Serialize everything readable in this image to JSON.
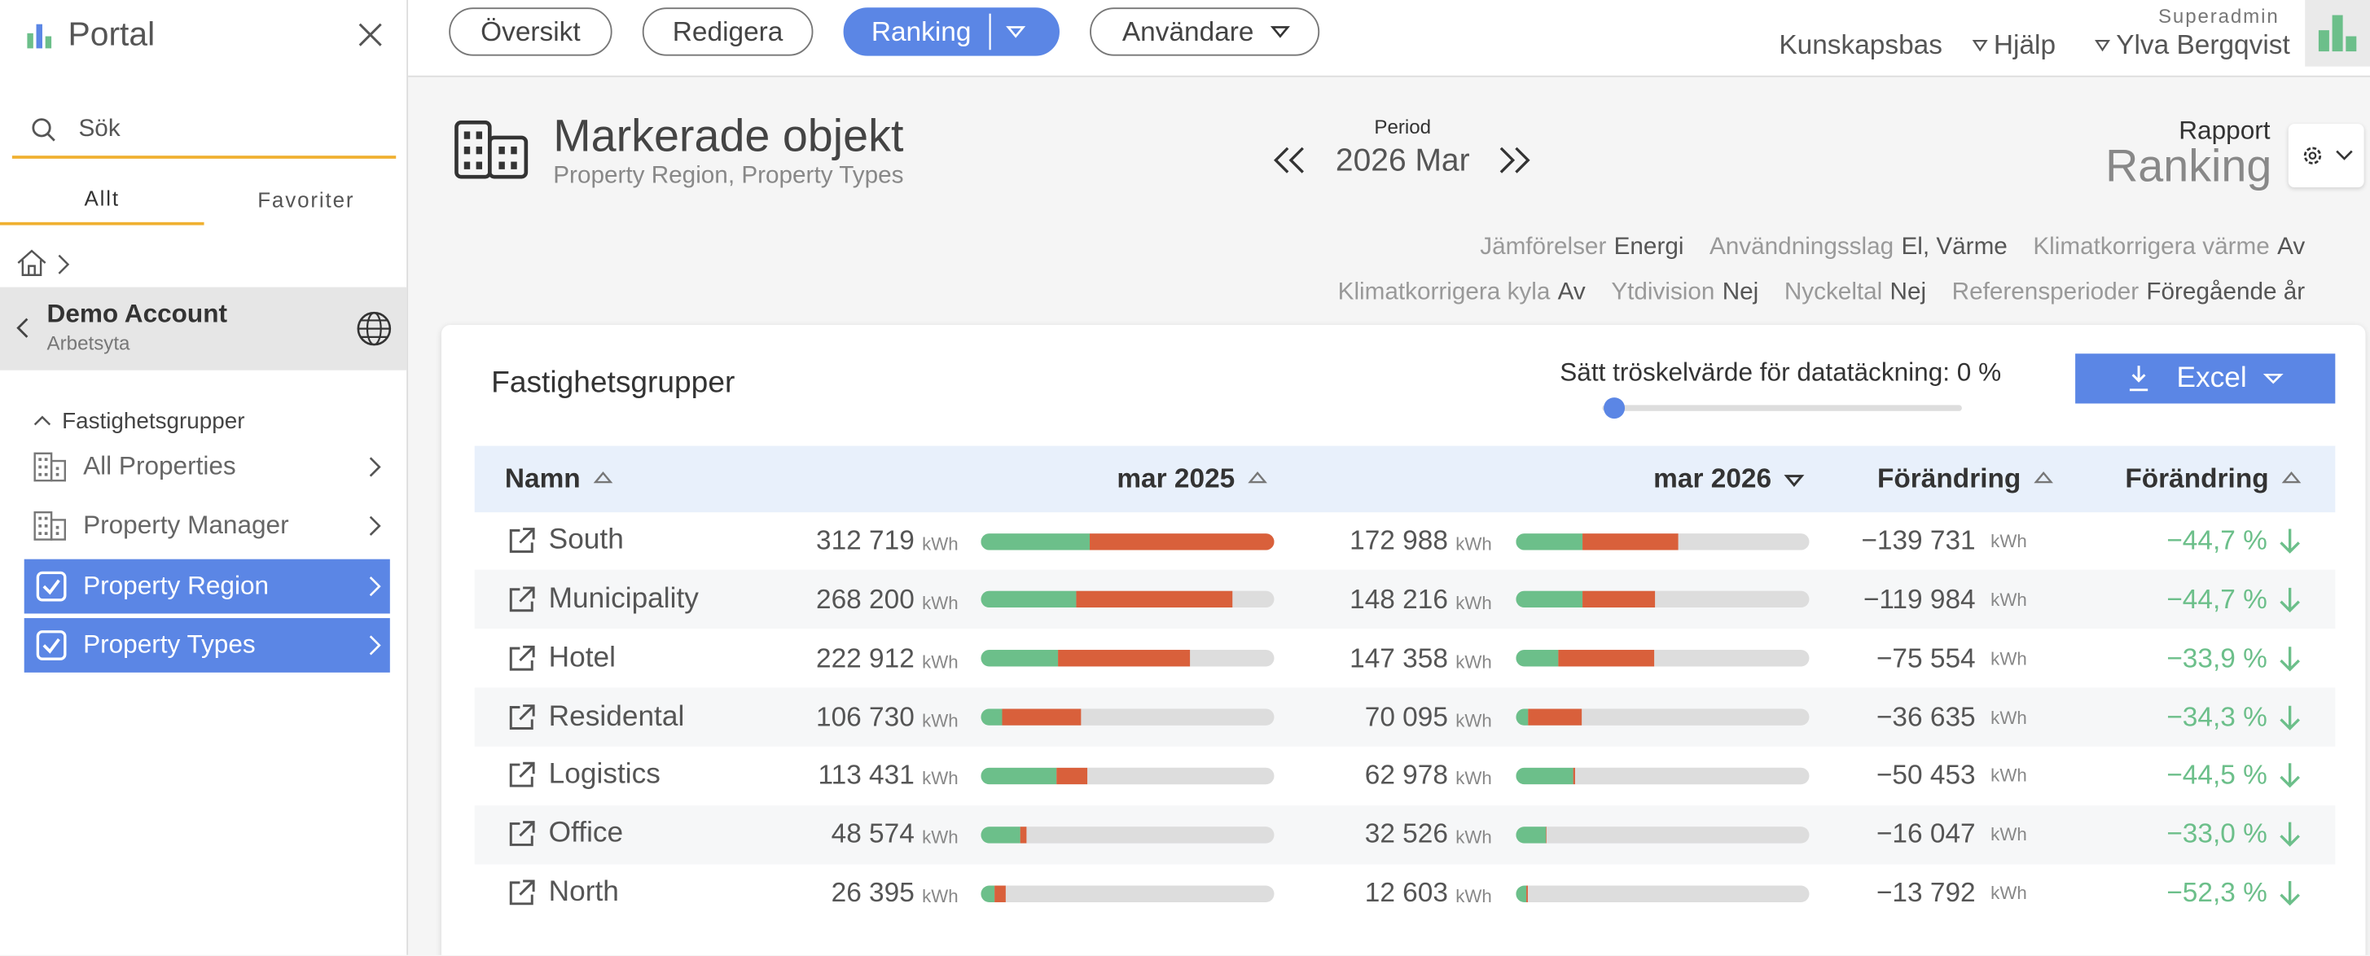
{
  "sidebar": {
    "logo": "Portal",
    "search": "Sök",
    "tabs": [
      "Allt",
      "Favoriter"
    ],
    "account": {
      "name": "Demo Account",
      "sub": "Arbetsyta"
    },
    "section": "Fastighetsgrupper",
    "items": [
      {
        "label": "All Properties",
        "checked": false
      },
      {
        "label": "Property Manager",
        "checked": false
      },
      {
        "label": "Property Region",
        "checked": true
      },
      {
        "label": "Property Types",
        "checked": true
      }
    ]
  },
  "nav": {
    "buttons": [
      "Översikt",
      "Redigera",
      "Ranking",
      "Användare"
    ],
    "active_index": 2
  },
  "user": {
    "role": "Superadmin",
    "links": [
      "Kunskapsbas",
      "Hjälp",
      "Ylva Bergqvist"
    ]
  },
  "header": {
    "title": "Markerade objekt",
    "subtitle": "Property Region, Property Types",
    "period_label": "Period",
    "period": "2026 Mar",
    "report_label": "Rapport",
    "report": "Ranking"
  },
  "settings": [
    [
      {
        "key": "Jämförelser",
        "value": "Energi"
      },
      {
        "key": "Användningsslag",
        "value": "El, Värme"
      },
      {
        "key": "Klimatkorrigera värme",
        "value": "Av"
      }
    ],
    [
      {
        "key": "Klimatkorrigera kyla",
        "value": "Av"
      },
      {
        "key": "Ytdivision",
        "value": "Nej"
      },
      {
        "key": "Nyckeltal",
        "value": "Nej"
      },
      {
        "key": "Referensperioder",
        "value": "Föregående år"
      }
    ]
  ],
  "table": {
    "title": "Fastighetsgrupper",
    "threshold": "Sätt tröskelvärde för datatäckning: 0 %",
    "excel": "Excel",
    "columns": [
      "Namn",
      "mar 2025",
      "mar 2026",
      "Förändring",
      "Förändring"
    ],
    "unit": "kWh",
    "colors": {
      "green": "#6cbf8a",
      "red": "#d9603b",
      "track": "#dddddd"
    },
    "rows": [
      {
        "name": "South",
        "prev": {
          "value": 312719,
          "label": "312 719"
        },
        "prev_split": [
          116000,
          196719
        ],
        "curr": {
          "value": 172988,
          "label": "172 988"
        },
        "curr_split": [
          70900,
          102088
        ],
        "change": {
          "value": -139731,
          "label": "−139 731"
        },
        "pct": {
          "value": -44.7,
          "label": "−44,7 %"
        }
      },
      {
        "name": "Municipality",
        "prev": {
          "value": 268200,
          "label": "268 200"
        },
        "prev_split": [
          101600,
          166600
        ],
        "curr": {
          "value": 148216,
          "label": "148 216"
        },
        "curr_split": [
          70900,
          77316
        ],
        "change": {
          "value": -119984,
          "label": "−119 984"
        },
        "pct": {
          "value": -44.7,
          "label": "−44,7 %"
        }
      },
      {
        "name": "Hotel",
        "prev": {
          "value": 222912,
          "label": "222 912"
        },
        "prev_split": [
          82200,
          140712
        ],
        "curr": {
          "value": 147358,
          "label": "147 358"
        },
        "curr_split": [
          45100,
          102258
        ],
        "change": {
          "value": -75554,
          "label": "−75 554"
        },
        "pct": {
          "value": -33.9,
          "label": "−33,9 %"
        }
      },
      {
        "name": "Residental",
        "prev": {
          "value": 106730,
          "label": "106 730"
        },
        "prev_split": [
          22600,
          84130
        ],
        "curr": {
          "value": 70095,
          "label": "70 095"
        },
        "curr_split": [
          12900,
          57195
        ],
        "change": {
          "value": -36635,
          "label": "−36 635"
        },
        "pct": {
          "value": -34.3,
          "label": "−34,3 %"
        }
      },
      {
        "name": "Logistics",
        "prev": {
          "value": 113431,
          "label": "113 431"
        },
        "prev_split": [
          80600,
          32831
        ],
        "curr": {
          "value": 62978,
          "label": "62 978"
        },
        "curr_split": [
          61000,
          1978
        ],
        "change": {
          "value": -50453,
          "label": "−50 453"
        },
        "pct": {
          "value": -44.5,
          "label": "−44,5 %"
        }
      },
      {
        "name": "Office",
        "prev": {
          "value": 48574,
          "label": "48 574"
        },
        "prev_split": [
          41900,
          6674
        ],
        "curr": {
          "value": 32526,
          "label": "32 526"
        },
        "curr_split": [
          32000,
          526
        ],
        "change": {
          "value": -16047,
          "label": "−16 047"
        },
        "pct": {
          "value": -33.0,
          "label": "−33,0 %"
        }
      },
      {
        "name": "North",
        "prev": {
          "value": 26395,
          "label": "26 395"
        },
        "prev_split": [
          14500,
          11895
        ],
        "curr": {
          "value": 12603,
          "label": "12 603"
        },
        "curr_split": [
          11000,
          1603
        ],
        "change": {
          "value": -13792,
          "label": "−13 792"
        },
        "pct": {
          "value": -52.3,
          "label": "−52,3 %"
        }
      }
    ]
  }
}
